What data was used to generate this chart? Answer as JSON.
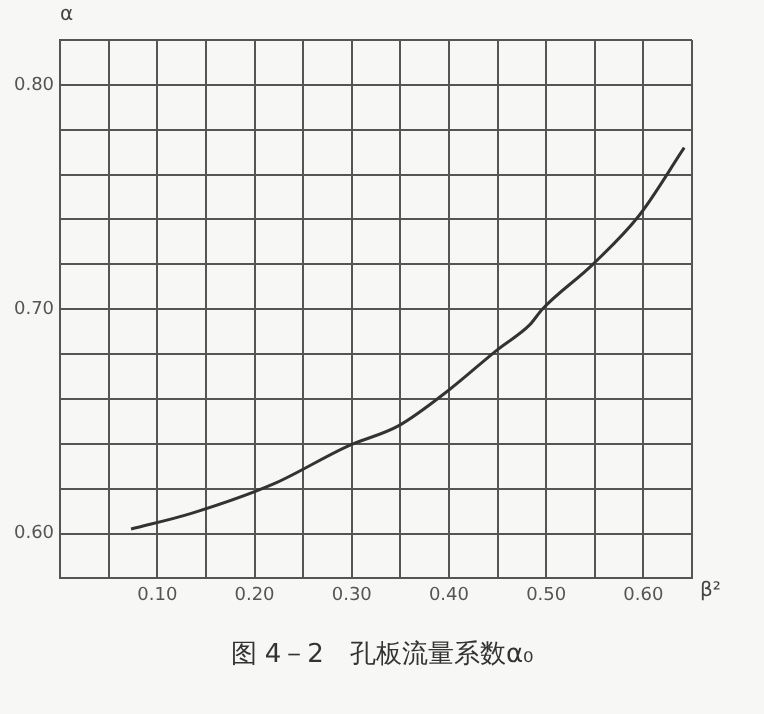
{
  "chart_data": {
    "type": "line",
    "title": "图 4－2　孔板流量系数α₀",
    "xlabel": "β²",
    "ylabel": "α",
    "series": [
      {
        "color": "#333333",
        "x": [
          0.073,
          0.135,
          0.219,
          0.296,
          0.348,
          0.4,
          0.45,
          0.483,
          0.496,
          0.548,
          0.596,
          0.642
        ],
        "values": [
          0.602,
          0.609,
          0.622,
          0.639,
          0.648,
          0.664,
          0.682,
          0.693,
          0.7,
          0.72,
          0.742,
          0.772
        ]
      }
    ],
    "xlim": [
      0,
      0.65
    ],
    "xticks": [
      {
        "value": 0,
        "label": null
      },
      {
        "value": 0.05,
        "label": null
      },
      {
        "value": 0.1,
        "label": "0.10"
      },
      {
        "value": 0.15,
        "label": null
      },
      {
        "value": 0.2,
        "label": "0.20"
      },
      {
        "value": 0.25,
        "label": null
      },
      {
        "value": 0.3,
        "label": "0.30"
      },
      {
        "value": 0.35,
        "label": null
      },
      {
        "value": 0.4,
        "label": "0.40"
      },
      {
        "value": 0.45,
        "label": null
      },
      {
        "value": 0.5,
        "label": "0.50"
      },
      {
        "value": 0.55,
        "label": null
      },
      {
        "value": 0.6,
        "label": "0.60"
      },
      {
        "value": 0.65,
        "label": null
      }
    ],
    "ylim": [
      0.58,
      0.82
    ],
    "yticks": [
      {
        "value": 0.58,
        "label": null
      },
      {
        "value": 0.6,
        "label": "0.60"
      },
      {
        "value": 0.62,
        "label": null
      },
      {
        "value": 0.64,
        "label": null
      },
      {
        "value": 0.66,
        "label": null
      },
      {
        "value": 0.68,
        "label": null
      },
      {
        "value": 0.7,
        "label": "0.70"
      },
      {
        "value": 0.72,
        "label": null
      },
      {
        "value": 0.74,
        "label": null
      },
      {
        "value": 0.76,
        "label": null
      },
      {
        "value": 0.78,
        "label": null
      },
      {
        "value": 0.8,
        "label": "0.80"
      },
      {
        "value": 0.82,
        "label": null
      }
    ],
    "grid": true,
    "legend": false,
    "marker": "none",
    "line_style": "solid"
  }
}
